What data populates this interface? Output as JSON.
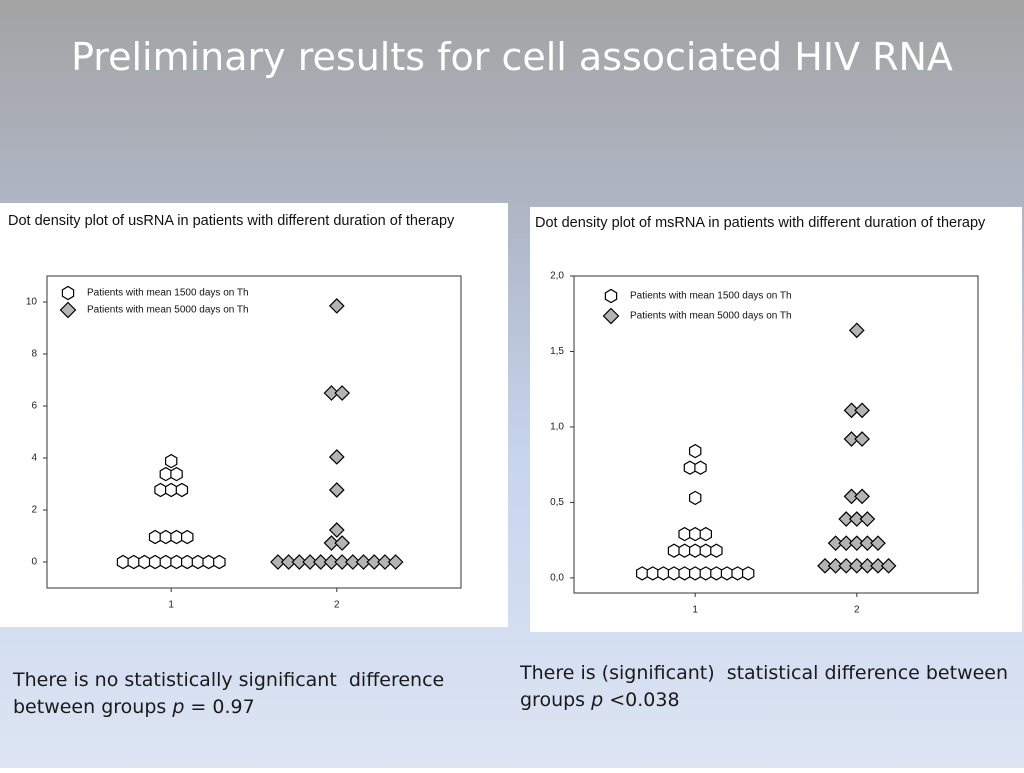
{
  "title": "Preliminary results for cell associated HIV RNA",
  "chart_data": [
    {
      "type": "dot",
      "title": "Dot density plot of usRNA in patients with different duration of therapy",
      "xlim": [
        0.25,
        2.75
      ],
      "xticks": [
        1,
        2
      ],
      "ylim": [
        -1,
        11
      ],
      "yticks": [
        0,
        2,
        4,
        6,
        8,
        10
      ],
      "legend": "upper left",
      "series": [
        {
          "name": "Patients with mean 1500 days on Th",
          "marker": "hexagon",
          "color": "#ffffff",
          "x": 1,
          "values": [
            0,
            0,
            0,
            0,
            0,
            0,
            0,
            0,
            0,
            0,
            0.96,
            0.96,
            0.96,
            0.96,
            2.77,
            2.77,
            2.77,
            3.38,
            3.38,
            3.88
          ]
        },
        {
          "name": "Patients with mean 5000 days on Th",
          "marker": "diamond",
          "color": "#b4b4b4",
          "x": 2,
          "values": [
            0,
            0,
            0,
            0,
            0,
            0,
            0,
            0,
            0,
            0,
            0,
            0,
            0.73,
            0.73,
            1.23,
            2.77,
            4.04,
            6.5,
            6.5,
            9.85
          ]
        }
      ]
    },
    {
      "type": "dot",
      "title": "Dot density plot of msRNA in patients with different duration of therapy",
      "xlim": [
        0.25,
        2.75
      ],
      "xticks": [
        1,
        2
      ],
      "ylim": [
        -0.1,
        2.0
      ],
      "yticks": [
        {
          "value": 0,
          "label": "0,0"
        },
        {
          "value": 0.5,
          "label": "0,5"
        },
        {
          "value": 1,
          "label": "1,0"
        },
        {
          "value": 1.5,
          "label": "1,5"
        },
        {
          "value": 2,
          "label": "2,0"
        }
      ],
      "legend": "upper left",
      "series": [
        {
          "name": "Patients with mean 1500 days on Th",
          "marker": "hexagon",
          "color": "#ffffff",
          "x": 1,
          "values": [
            0.03,
            0.03,
            0.03,
            0.03,
            0.03,
            0.03,
            0.03,
            0.03,
            0.03,
            0.03,
            0.03,
            0.18,
            0.18,
            0.18,
            0.18,
            0.18,
            0.29,
            0.29,
            0.29,
            0.53,
            0.73,
            0.73,
            0.84
          ]
        },
        {
          "name": "Patients with mean 5000 days on Th",
          "marker": "diamond",
          "color": "#b4b4b4",
          "x": 2,
          "values": [
            0.08,
            0.08,
            0.08,
            0.08,
            0.08,
            0.08,
            0.08,
            0.23,
            0.23,
            0.23,
            0.23,
            0.23,
            0.39,
            0.39,
            0.39,
            0.54,
            0.54,
            0.92,
            0.92,
            1.11,
            1.11,
            1.64
          ]
        }
      ]
    }
  ],
  "notes": [
    [
      "There is no statistically significant  difference",
      "between groups ",
      "p",
      " = 0.97"
    ],
    [
      "There is (significant)  statistical difference between",
      "groups ",
      "p",
      " <0.038"
    ]
  ]
}
